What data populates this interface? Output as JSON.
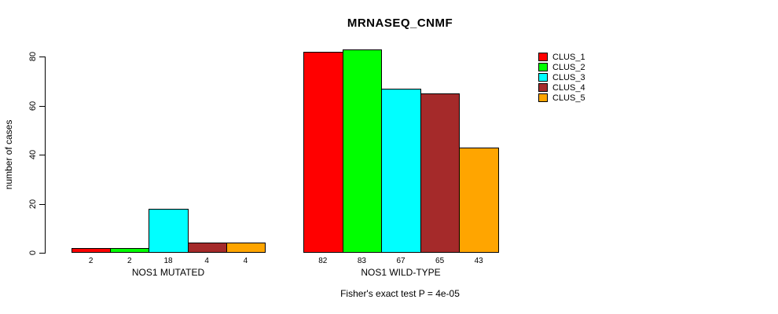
{
  "chart_data": {
    "type": "bar",
    "title": "MRNASEQ_CNMF",
    "ylabel": "number of cases",
    "xlabel": "",
    "caption": "Fisher's exact test P = 4e-05",
    "categories": [
      "NOS1 MUTATED",
      "NOS1 WILD-TYPE"
    ],
    "series": [
      {
        "name": "CLUS_1",
        "color": "#FF0000",
        "values": [
          2,
          82
        ]
      },
      {
        "name": "CLUS_2",
        "color": "#00FF00",
        "values": [
          2,
          83
        ]
      },
      {
        "name": "CLUS_3",
        "color": "#00FFFF",
        "values": [
          18,
          67
        ]
      },
      {
        "name": "CLUS_4",
        "color": "#A52A2A",
        "values": [
          4,
          65
        ]
      },
      {
        "name": "CLUS_5",
        "color": "#FFA500",
        "values": [
          4,
          43
        ]
      }
    ],
    "y_ticks": [
      0,
      20,
      40,
      60,
      80
    ],
    "ylim": [
      0,
      80
    ],
    "grid": false,
    "bar_value_labels": true,
    "legend": {
      "position": "right",
      "entries": [
        "CLUS_1",
        "CLUS_2",
        "CLUS_3",
        "CLUS_4",
        "CLUS_5"
      ]
    }
  }
}
